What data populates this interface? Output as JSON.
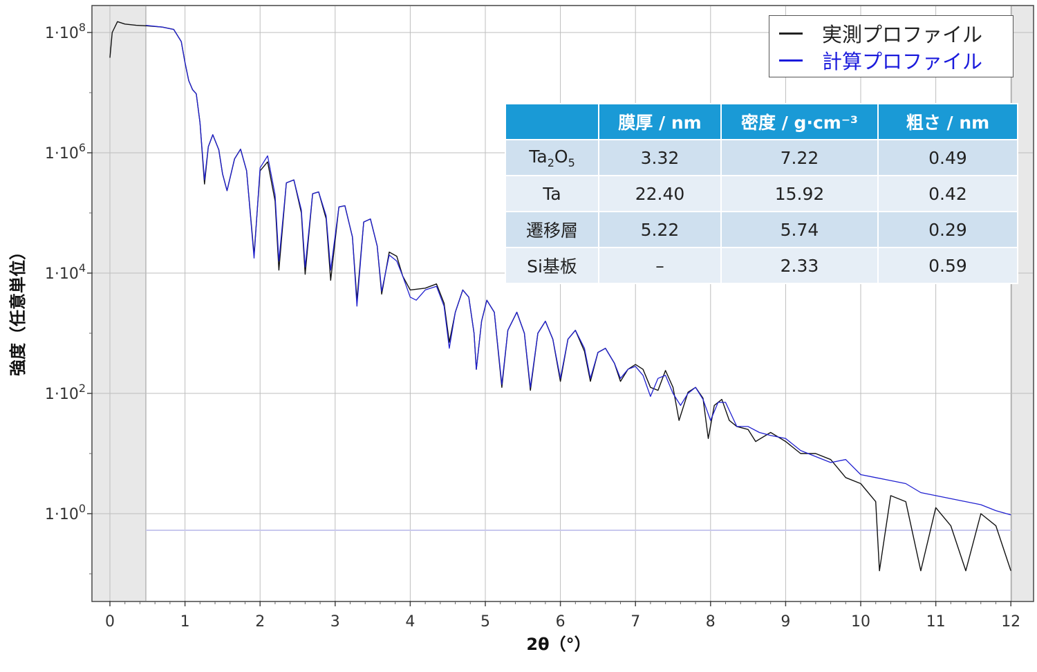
{
  "chart_data": {
    "type": "line",
    "xlabel": "2θ（°）",
    "ylabel": "強度（任意単位）",
    "xlim": [
      0,
      12
    ],
    "ylim": [
      -1,
      8.3
    ],
    "yscale": "log",
    "grid": true,
    "legend_position": "top-right",
    "x_ticks": [
      "0",
      "1",
      "2",
      "3",
      "4",
      "5",
      "6",
      "7",
      "8",
      "9",
      "10",
      "11",
      "12"
    ],
    "y_ticks": [
      {
        "base": "1·10",
        "exp": "0",
        "value": 0
      },
      {
        "base": "1·10",
        "exp": "2",
        "value": 2
      },
      {
        "base": "1·10",
        "exp": "4",
        "value": 4
      },
      {
        "base": "1·10",
        "exp": "6",
        "value": 6
      },
      {
        "base": "1·10",
        "exp": "8",
        "value": 8
      }
    ],
    "series": [
      {
        "name": "実測プロファイル",
        "color": "#111111",
        "x_log10y": [
          [
            0.0,
            7.58
          ],
          [
            0.03,
            8.0
          ],
          [
            0.1,
            8.18
          ],
          [
            0.2,
            8.14
          ],
          [
            0.35,
            8.12
          ],
          [
            0.5,
            8.11
          ],
          [
            0.7,
            8.09
          ],
          [
            0.85,
            8.05
          ],
          [
            0.95,
            7.85
          ],
          [
            1.0,
            7.5
          ],
          [
            1.05,
            7.2
          ],
          [
            1.1,
            7.05
          ],
          [
            1.15,
            6.98
          ],
          [
            1.2,
            6.5
          ],
          [
            1.26,
            5.48
          ],
          [
            1.31,
            6.1
          ],
          [
            1.37,
            6.3
          ],
          [
            1.45,
            6.05
          ],
          [
            1.5,
            5.65
          ],
          [
            1.56,
            5.37
          ],
          [
            1.66,
            5.9
          ],
          [
            1.74,
            6.06
          ],
          [
            1.82,
            5.7
          ],
          [
            1.92,
            4.3
          ],
          [
            2.0,
            5.7
          ],
          [
            2.1,
            5.85
          ],
          [
            2.2,
            5.2
          ],
          [
            2.25,
            4.05
          ],
          [
            2.35,
            5.5
          ],
          [
            2.45,
            5.55
          ],
          [
            2.55,
            5.0
          ],
          [
            2.6,
            3.98
          ],
          [
            2.7,
            5.32
          ],
          [
            2.78,
            5.35
          ],
          [
            2.88,
            4.9
          ],
          [
            2.94,
            3.88
          ],
          [
            3.05,
            5.1
          ],
          [
            3.13,
            5.12
          ],
          [
            3.23,
            4.6
          ],
          [
            3.29,
            3.55
          ],
          [
            3.38,
            4.85
          ],
          [
            3.47,
            4.9
          ],
          [
            3.56,
            4.45
          ],
          [
            3.62,
            3.65
          ],
          [
            3.72,
            4.35
          ],
          [
            3.82,
            4.28
          ],
          [
            3.9,
            3.95
          ],
          [
            4.0,
            3.72
          ],
          [
            4.2,
            3.75
          ],
          [
            4.35,
            3.82
          ],
          [
            4.45,
            3.5
          ],
          [
            4.52,
            2.85
          ],
          [
            4.6,
            3.35
          ],
          [
            4.7,
            3.72
          ],
          [
            4.78,
            3.6
          ],
          [
            4.85,
            3.0
          ],
          [
            4.88,
            2.4
          ],
          [
            4.95,
            3.2
          ],
          [
            5.02,
            3.55
          ],
          [
            5.12,
            3.35
          ],
          [
            5.22,
            2.1
          ],
          [
            5.3,
            3.05
          ],
          [
            5.42,
            3.35
          ],
          [
            5.52,
            3.0
          ],
          [
            5.6,
            2.05
          ],
          [
            5.7,
            3.0
          ],
          [
            5.8,
            3.2
          ],
          [
            5.9,
            2.9
          ],
          [
            6.0,
            2.2
          ],
          [
            6.1,
            2.9
          ],
          [
            6.2,
            3.05
          ],
          [
            6.32,
            2.7
          ],
          [
            6.4,
            2.2
          ],
          [
            6.5,
            2.68
          ],
          [
            6.6,
            2.75
          ],
          [
            6.72,
            2.5
          ],
          [
            6.8,
            2.2
          ],
          [
            6.9,
            2.4
          ],
          [
            7.0,
            2.48
          ],
          [
            7.1,
            2.4
          ],
          [
            7.2,
            2.1
          ],
          [
            7.3,
            2.05
          ],
          [
            7.4,
            2.38
          ],
          [
            7.5,
            2.1
          ],
          [
            7.58,
            1.55
          ],
          [
            7.7,
            2.02
          ],
          [
            7.8,
            2.1
          ],
          [
            7.9,
            1.92
          ],
          [
            7.97,
            1.25
          ],
          [
            8.05,
            1.8
          ],
          [
            8.15,
            1.9
          ],
          [
            8.25,
            1.55
          ],
          [
            8.35,
            1.45
          ],
          [
            8.5,
            1.4
          ],
          [
            8.6,
            1.2
          ],
          [
            8.8,
            1.35
          ],
          [
            9.0,
            1.2
          ],
          [
            9.2,
            1.0
          ],
          [
            9.4,
            1.0
          ],
          [
            9.6,
            0.9
          ],
          [
            9.8,
            0.6
          ],
          [
            10.0,
            0.5
          ],
          [
            10.2,
            0.2
          ],
          [
            10.25,
            -0.95
          ],
          [
            10.4,
            0.3
          ],
          [
            10.6,
            0.2
          ],
          [
            10.8,
            -0.95
          ],
          [
            11.0,
            0.1
          ],
          [
            11.2,
            -0.2
          ],
          [
            11.4,
            -0.95
          ],
          [
            11.6,
            0.0
          ],
          [
            11.8,
            -0.2
          ],
          [
            12.0,
            -0.95
          ]
        ]
      },
      {
        "name": "計算プロファイル",
        "color": "#2020d0",
        "x_log10y": [
          [
            0.48,
            8.12
          ],
          [
            0.7,
            8.09
          ],
          [
            0.85,
            8.05
          ],
          [
            0.95,
            7.85
          ],
          [
            1.0,
            7.5
          ],
          [
            1.05,
            7.2
          ],
          [
            1.1,
            7.05
          ],
          [
            1.15,
            6.98
          ],
          [
            1.2,
            6.5
          ],
          [
            1.26,
            5.55
          ],
          [
            1.31,
            6.1
          ],
          [
            1.37,
            6.3
          ],
          [
            1.45,
            6.05
          ],
          [
            1.5,
            5.65
          ],
          [
            1.56,
            5.37
          ],
          [
            1.66,
            5.9
          ],
          [
            1.74,
            6.06
          ],
          [
            1.82,
            5.7
          ],
          [
            1.92,
            4.25
          ],
          [
            2.0,
            5.75
          ],
          [
            2.1,
            5.95
          ],
          [
            2.2,
            5.3
          ],
          [
            2.25,
            4.2
          ],
          [
            2.35,
            5.5
          ],
          [
            2.45,
            5.55
          ],
          [
            2.55,
            5.05
          ],
          [
            2.6,
            4.1
          ],
          [
            2.7,
            5.32
          ],
          [
            2.78,
            5.35
          ],
          [
            2.88,
            4.95
          ],
          [
            2.94,
            4.05
          ],
          [
            3.05,
            5.1
          ],
          [
            3.13,
            5.12
          ],
          [
            3.23,
            4.6
          ],
          [
            3.29,
            3.45
          ],
          [
            3.38,
            4.85
          ],
          [
            3.47,
            4.9
          ],
          [
            3.56,
            4.45
          ],
          [
            3.62,
            3.7
          ],
          [
            3.72,
            4.3
          ],
          [
            3.82,
            4.2
          ],
          [
            3.9,
            3.95
          ],
          [
            4.0,
            3.6
          ],
          [
            4.08,
            3.55
          ],
          [
            4.2,
            3.72
          ],
          [
            4.35,
            3.78
          ],
          [
            4.45,
            3.45
          ],
          [
            4.52,
            2.75
          ],
          [
            4.6,
            3.35
          ],
          [
            4.7,
            3.72
          ],
          [
            4.78,
            3.6
          ],
          [
            4.85,
            3.0
          ],
          [
            4.88,
            2.4
          ],
          [
            4.95,
            3.2
          ],
          [
            5.02,
            3.55
          ],
          [
            5.12,
            3.35
          ],
          [
            5.22,
            2.15
          ],
          [
            5.3,
            3.05
          ],
          [
            5.42,
            3.35
          ],
          [
            5.52,
            3.0
          ],
          [
            5.6,
            2.1
          ],
          [
            5.7,
            3.0
          ],
          [
            5.8,
            3.2
          ],
          [
            5.9,
            2.9
          ],
          [
            6.0,
            2.25
          ],
          [
            6.1,
            2.9
          ],
          [
            6.2,
            3.05
          ],
          [
            6.32,
            2.75
          ],
          [
            6.4,
            2.25
          ],
          [
            6.5,
            2.68
          ],
          [
            6.6,
            2.75
          ],
          [
            6.72,
            2.5
          ],
          [
            6.8,
            2.25
          ],
          [
            6.9,
            2.4
          ],
          [
            7.0,
            2.45
          ],
          [
            7.1,
            2.3
          ],
          [
            7.2,
            1.95
          ],
          [
            7.3,
            2.25
          ],
          [
            7.4,
            2.3
          ],
          [
            7.5,
            2.0
          ],
          [
            7.6,
            1.8
          ],
          [
            7.7,
            2.0
          ],
          [
            7.8,
            2.1
          ],
          [
            7.9,
            1.9
          ],
          [
            8.0,
            1.55
          ],
          [
            8.1,
            1.85
          ],
          [
            8.2,
            1.85
          ],
          [
            8.35,
            1.45
          ],
          [
            8.5,
            1.45
          ],
          [
            8.65,
            1.35
          ],
          [
            8.8,
            1.3
          ],
          [
            9.0,
            1.25
          ],
          [
            9.2,
            1.05
          ],
          [
            9.4,
            0.95
          ],
          [
            9.6,
            0.85
          ],
          [
            9.8,
            0.9
          ],
          [
            10.0,
            0.65
          ],
          [
            10.2,
            0.6
          ],
          [
            10.4,
            0.55
          ],
          [
            10.6,
            0.5
          ],
          [
            10.8,
            0.35
          ],
          [
            11.0,
            0.3
          ],
          [
            11.2,
            0.25
          ],
          [
            11.4,
            0.2
          ],
          [
            11.6,
            0.15
          ],
          [
            11.8,
            0.05
          ],
          [
            12.0,
            -0.02
          ]
        ]
      }
    ],
    "colors": {
      "measured": "#111111",
      "calculated": "#2020d0",
      "table_header": "#1a9ad6"
    }
  },
  "legend": {
    "items": [
      {
        "label": "実測プロファイル",
        "color": "#222222"
      },
      {
        "label": "計算プロファイル",
        "color": "#1a1adc"
      }
    ]
  },
  "table": {
    "headers": [
      "",
      "膜厚 / nm",
      "密度 / g·cm⁻³",
      "粗さ / nm"
    ],
    "rows": [
      {
        "layer_main": "Ta",
        "layer_sub1": "2",
        "layer_mid": "O",
        "layer_sub2": "5",
        "thickness": "3.32",
        "density": "7.22",
        "roughness": "0.49"
      },
      {
        "layer": "Ta",
        "thickness": "22.40",
        "density": "15.92",
        "roughness": "0.42"
      },
      {
        "layer": "遷移層",
        "thickness": "5.22",
        "density": "5.74",
        "roughness": "0.29"
      },
      {
        "layer": "Si基板",
        "thickness": "–",
        "density": "2.33",
        "roughness": "0.59"
      }
    ]
  }
}
